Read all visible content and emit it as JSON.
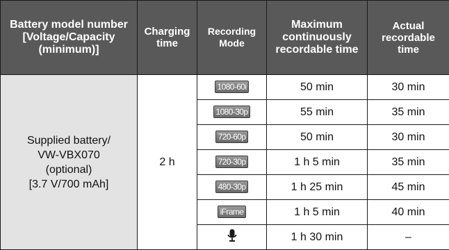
{
  "headers": {
    "battery": "Battery model number [Voltage/Capacity (minimum)]",
    "charging": "Charging time",
    "mode": "Recording Mode",
    "max": "Maximum continuously recordable time",
    "actual": "Actual recordable time"
  },
  "battery_line1": "Supplied battery/",
  "battery_line2": "VW-VBX070",
  "battery_line3": "(optional)",
  "battery_line4": "[3.7 V/700 mAh]",
  "charging_time": "2 h",
  "rows": [
    {
      "mode": "1080-60i",
      "max": "50 min",
      "actual": "30 min"
    },
    {
      "mode": "1080-30p",
      "max": "55 min",
      "actual": "35 min"
    },
    {
      "mode": "720-60p",
      "max": "50 min",
      "actual": "30 min"
    },
    {
      "mode": "720-30p",
      "max": "1 h 5 min",
      "actual": "35 min"
    },
    {
      "mode": "480-30p",
      "max": "1 h 25 min",
      "actual": "45 min"
    },
    {
      "mode": "iFrame",
      "max": "1 h 5 min",
      "actual": "40 min"
    },
    {
      "mode_icon": "microphone-icon",
      "max": "1 h 30 min",
      "actual": "–"
    }
  ]
}
